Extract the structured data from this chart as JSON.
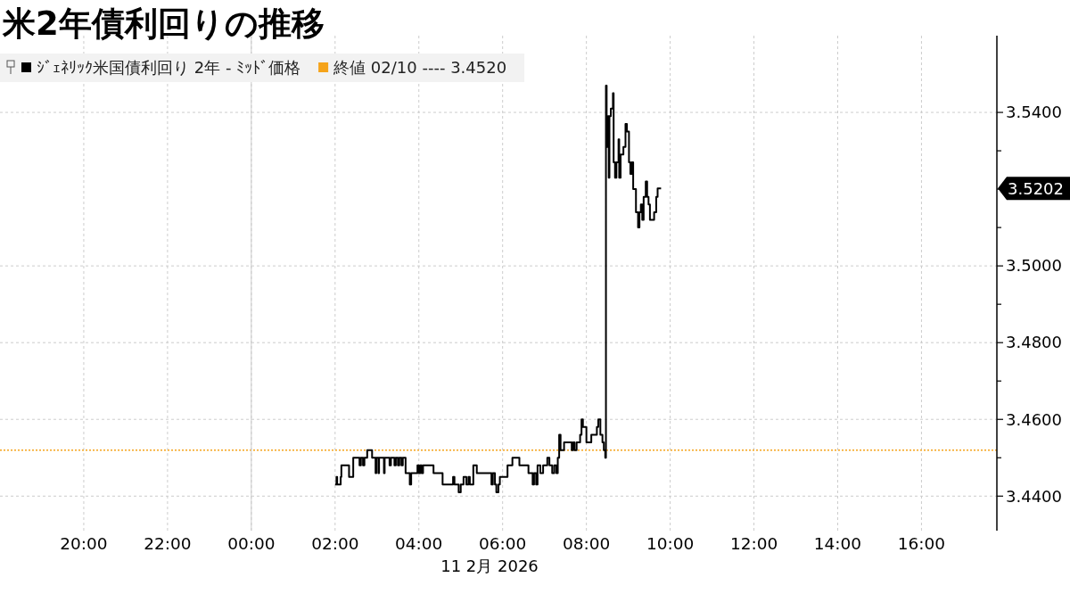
{
  "chart_data": {
    "type": "step",
    "title": "米2年債利回りの推移",
    "xlabel": "11 2月 2026",
    "x": [
      "2026-02-11T02:00",
      "2026-02-11T02:02",
      "2026-02-11T02:03",
      "2026-02-11T02:08",
      "2026-02-11T02:09",
      "2026-02-11T02:20",
      "2026-02-11T02:26",
      "2026-02-11T02:35",
      "2026-02-11T02:37",
      "2026-02-11T02:40",
      "2026-02-11T02:42",
      "2026-02-11T02:46",
      "2026-02-11T02:53",
      "2026-02-11T02:58",
      "2026-02-11T02:59",
      "2026-02-11T03:02",
      "2026-02-11T03:03",
      "2026-02-11T03:10",
      "2026-02-11T03:11",
      "2026-02-11T03:18",
      "2026-02-11T03:20",
      "2026-02-11T03:25",
      "2026-02-11T03:27",
      "2026-02-11T03:30",
      "2026-02-11T03:32",
      "2026-02-11T03:35",
      "2026-02-11T03:37",
      "2026-02-11T03:41",
      "2026-02-11T03:47",
      "2026-02-11T03:49",
      "2026-02-11T03:58",
      "2026-02-11T04:00",
      "2026-02-11T04:02",
      "2026-02-11T04:04",
      "2026-02-11T04:06",
      "2026-02-11T04:21",
      "2026-02-11T04:34",
      "2026-02-11T04:49",
      "2026-02-11T04:51",
      "2026-02-11T04:57",
      "2026-02-11T05:00",
      "2026-02-11T05:04",
      "2026-02-11T05:08",
      "2026-02-11T05:11",
      "2026-02-11T05:13",
      "2026-02-11T05:18",
      "2026-02-11T05:23",
      "2026-02-11T05:44",
      "2026-02-11T05:46",
      "2026-02-11T05:49",
      "2026-02-11T05:51",
      "2026-02-11T05:54",
      "2026-02-11T05:56",
      "2026-02-11T06:07",
      "2026-02-11T06:14",
      "2026-02-11T06:24",
      "2026-02-11T06:37",
      "2026-02-11T06:43",
      "2026-02-11T06:45",
      "2026-02-11T06:48",
      "2026-02-11T06:50",
      "2026-02-11T06:54",
      "2026-02-11T06:58",
      "2026-02-11T07:04",
      "2026-02-11T07:07",
      "2026-02-11T07:11",
      "2026-02-11T07:14",
      "2026-02-11T07:17",
      "2026-02-11T07:19",
      "2026-02-11T07:21",
      "2026-02-11T07:23",
      "2026-02-11T07:28",
      "2026-02-11T07:39",
      "2026-02-11T07:41",
      "2026-02-11T07:43",
      "2026-02-11T07:46",
      "2026-02-11T07:51",
      "2026-02-11T07:53",
      "2026-02-11T07:55",
      "2026-02-11T08:00",
      "2026-02-11T08:07",
      "2026-02-11T08:15",
      "2026-02-11T08:17",
      "2026-02-11T08:20",
      "2026-02-11T08:23",
      "2026-02-11T08:25",
      "2026-02-11T08:27",
      "2026-02-11T08:28",
      "2026-02-11T08:29",
      "2026-02-11T08:31",
      "2026-02-11T08:32",
      "2026-02-11T08:33",
      "2026-02-11T08:35",
      "2026-02-11T08:38",
      "2026-02-11T08:39",
      "2026-02-11T08:41",
      "2026-02-11T08:43",
      "2026-02-11T08:46",
      "2026-02-11T08:47",
      "2026-02-11T08:49",
      "2026-02-11T08:53",
      "2026-02-11T08:56",
      "2026-02-11T08:58",
      "2026-02-11T09:01",
      "2026-02-11T09:03",
      "2026-02-11T09:05",
      "2026-02-11T09:07",
      "2026-02-11T09:11",
      "2026-02-11T09:14",
      "2026-02-11T09:16",
      "2026-02-11T09:18",
      "2026-02-11T09:20",
      "2026-02-11T09:22",
      "2026-02-11T09:25",
      "2026-02-11T09:27",
      "2026-02-11T09:29",
      "2026-02-11T09:31",
      "2026-02-11T09:37",
      "2026-02-11T09:40",
      "2026-02-11T09:42",
      "2026-02-11T09:47"
    ],
    "series": [
      {
        "name": "ｼﾞｪﾈﾘｯｸ米国債利回り 2年 - ﾐｯﾄﾞ価格",
        "color": "#000000",
        "values": [
          3.443,
          3.445,
          3.443,
          3.445,
          3.448,
          3.445,
          3.45,
          3.448,
          3.45,
          3.448,
          3.45,
          3.452,
          3.45,
          3.446,
          3.45,
          3.446,
          3.45,
          3.446,
          3.45,
          3.448,
          3.45,
          3.448,
          3.45,
          3.448,
          3.45,
          3.448,
          3.45,
          3.446,
          3.443,
          3.446,
          3.448,
          3.446,
          3.448,
          3.446,
          3.448,
          3.446,
          3.443,
          3.445,
          3.443,
          3.441,
          3.443,
          3.445,
          3.443,
          3.445,
          3.443,
          3.448,
          3.446,
          3.443,
          3.446,
          3.443,
          3.441,
          3.443,
          3.445,
          3.448,
          3.45,
          3.448,
          3.446,
          3.443,
          3.446,
          3.443,
          3.448,
          3.446,
          3.448,
          3.45,
          3.448,
          3.446,
          3.448,
          3.446,
          3.45,
          3.456,
          3.452,
          3.454,
          3.452,
          3.454,
          3.452,
          3.454,
          3.456,
          3.46,
          3.458,
          3.454,
          3.456,
          3.458,
          3.46,
          3.456,
          3.454,
          3.452,
          3.45,
          3.547,
          3.531,
          3.539,
          3.523,
          3.539,
          3.541,
          3.545,
          3.527,
          3.523,
          3.527,
          3.533,
          3.523,
          3.529,
          3.531,
          3.537,
          3.535,
          3.527,
          3.524,
          3.527,
          3.52,
          3.514,
          3.51,
          3.514,
          3.516,
          3.512,
          3.518,
          3.522,
          3.518,
          3.516,
          3.512,
          3.514,
          3.518,
          3.5202,
          3.5202
        ]
      }
    ],
    "xlim": [
      "2026-02-10T18:00",
      "2026-02-11T17:48"
    ],
    "xticks": [
      {
        "value": "2026-02-10T20:00",
        "label": "20:00"
      },
      {
        "value": "2026-02-10T22:00",
        "label": "22:00"
      },
      {
        "value": "2026-02-11T00:00",
        "label": "00:00"
      },
      {
        "value": "2026-02-11T02:00",
        "label": "02:00"
      },
      {
        "value": "2026-02-11T04:00",
        "label": "04:00"
      },
      {
        "value": "2026-02-11T06:00",
        "label": "06:00"
      },
      {
        "value": "2026-02-11T08:00",
        "label": "08:00"
      },
      {
        "value": "2026-02-11T10:00",
        "label": "10:00"
      },
      {
        "value": "2026-02-11T12:00",
        "label": "12:00"
      },
      {
        "value": "2026-02-11T14:00",
        "label": "14:00"
      },
      {
        "value": "2026-02-11T16:00",
        "label": "16:00"
      }
    ],
    "ylim": [
      3.431,
      3.56
    ],
    "yticks": [
      {
        "value": 3.44,
        "label": "3.4400"
      },
      {
        "value": 3.45,
        "label": null
      },
      {
        "value": 3.46,
        "label": "3.4600"
      },
      {
        "value": 3.47,
        "label": null
      },
      {
        "value": 3.48,
        "label": "3.4800"
      },
      {
        "value": 3.49,
        "label": null
      },
      {
        "value": 3.5,
        "label": "3.5000"
      },
      {
        "value": 3.51,
        "label": null
      },
      {
        "value": 3.52,
        "label": null
      },
      {
        "value": 3.53,
        "label": null
      },
      {
        "value": 3.54,
        "label": "3.5400"
      }
    ],
    "grid": true,
    "legend": "top left",
    "ref_lines": [
      {
        "axis": "y",
        "value": 3.452,
        "label": "終値 02/10 ---- 3.4520",
        "color": "#f5a31a",
        "line_style": "dotted"
      },
      {
        "axis": "x",
        "value": "2026-02-11T00:00",
        "color": "#cccccc",
        "line_style": "solid"
      }
    ],
    "annotations": [
      "3.5202"
    ]
  }
}
